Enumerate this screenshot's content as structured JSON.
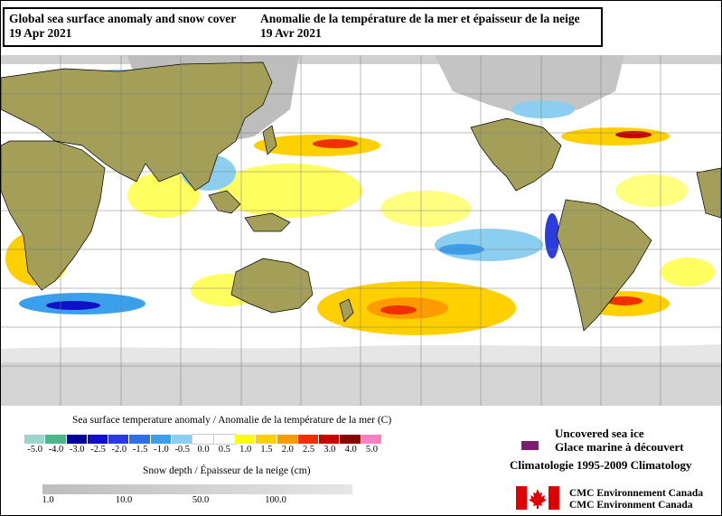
{
  "title": {
    "english": "Global sea surface anomaly and snow cover",
    "english_date": "19 Apr 2021",
    "french": "Anomalie de la température de la mer et épaisseur de la neige",
    "french_date": "19 Avr 2021"
  },
  "sst_legend": {
    "title": "Sea surface temperature anomaly / Anomalie de la température de la mer (C)",
    "ticks": [
      "-5.0",
      "-4.0",
      "-3.0",
      "-2.5",
      "-2.0",
      "-1.5",
      "-1.0",
      "-0.5",
      "0.0",
      "0.5",
      "1.0",
      "1.5",
      "2.0",
      "2.5",
      "3.0",
      "4.0",
      "5.0"
    ],
    "colors": [
      "#9fd4cc",
      "#4cb58a",
      "#00009c",
      "#1010c8",
      "#2a3cdc",
      "#2e6ee6",
      "#3aa0ec",
      "#8ccef0",
      "#ffffff",
      "#ffffff",
      "#ffff00",
      "#ffd000",
      "#ff9a00",
      "#f03000",
      "#c80000",
      "#8c0000",
      "#ff80c0"
    ]
  },
  "snow_legend": {
    "title": "Snow depth / Épaisseur de la neige (cm)",
    "ticks": [
      "1.0",
      "10.0",
      "50.0",
      "100.0"
    ]
  },
  "ice_legend": {
    "english": "Uncovered sea ice",
    "french": "Glace marine à découvert",
    "color": "#7d1f6f"
  },
  "climatology": "Climatologie 1995-2009 Climatology",
  "credit": {
    "line1": "CMC Environnement Canada",
    "line2": "CMC Environment Canada"
  }
}
